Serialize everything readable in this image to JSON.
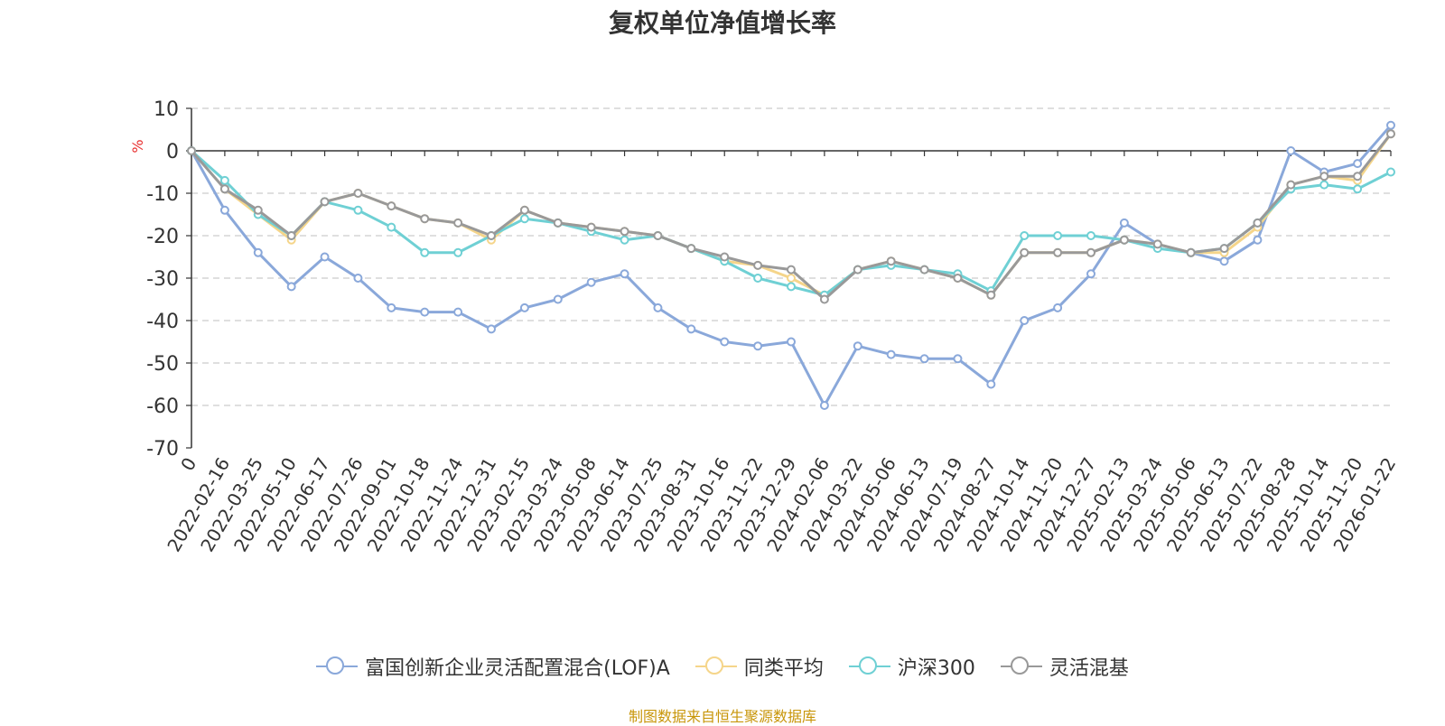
{
  "chart_data": {
    "type": "line",
    "title": "复权单位净值增长率",
    "ylabel": "%",
    "ylim": [
      -70,
      10
    ],
    "yticks": [
      10,
      0,
      -10,
      -20,
      -30,
      -40,
      -50,
      -60,
      -70
    ],
    "grid": true,
    "legend_position": "bottom-center",
    "categories": [
      "0",
      "2022-02-16",
      "2022-03-25",
      "2022-05-10",
      "2022-06-17",
      "2022-07-26",
      "2022-09-01",
      "2022-10-18",
      "2022-11-24",
      "2022-12-31",
      "2023-02-15",
      "2023-03-24",
      "2023-05-08",
      "2023-06-14",
      "2023-07-25",
      "2023-08-31",
      "2023-10-16",
      "2023-11-22",
      "2023-12-29",
      "2024-02-06",
      "2024-03-22",
      "2024-05-06",
      "2024-06-13",
      "2024-07-19",
      "2024-08-27",
      "2024-10-14",
      "2024-11-20",
      "2024-12-27",
      "2025-02-13",
      "2025-03-24",
      "2025-05-06",
      "2025-06-13",
      "2025-07-22",
      "2025-08-28",
      "2025-10-14",
      "2025-11-20",
      "2026-01-22"
    ],
    "series": [
      {
        "name": "富国创新企业灵活配置混合(LOF)A",
        "color": "#8aa8da",
        "values": [
          0,
          -14,
          -24,
          -32,
          -25,
          -30,
          -37,
          -38,
          -38,
          -42,
          -37,
          -35,
          -31,
          -29,
          -37,
          -42,
          -45,
          -46,
          -45,
          -60,
          -46,
          -48,
          -49,
          -49,
          -55,
          -40,
          -37,
          -29,
          -17,
          -22,
          -24,
          -26,
          -21,
          0,
          -5,
          -3,
          6
        ]
      },
      {
        "name": "同类平均",
        "color": "#f5d58a",
        "values": [
          0,
          -9,
          -15,
          -21,
          -12,
          -10,
          -13,
          -16,
          -17,
          -21,
          -14,
          -17,
          -18,
          -19,
          -20,
          -23,
          -26,
          -27,
          -30,
          -34,
          -28,
          -26,
          -28,
          -30,
          -34,
          -24,
          -24,
          -24,
          -21,
          -22,
          -24,
          -24,
          -18,
          -8,
          -6,
          -7,
          4
        ]
      },
      {
        "name": "沪深300",
        "color": "#6fd0d4",
        "values": [
          0,
          -7,
          -15,
          -20,
          -12,
          -14,
          -18,
          -24,
          -24,
          -20,
          -16,
          -17,
          -19,
          -21,
          -20,
          -23,
          -26,
          -30,
          -32,
          -34,
          -28,
          -27,
          -28,
          -29,
          -33,
          -20,
          -20,
          -20,
          -21,
          -23,
          -24,
          -23,
          -17,
          -9,
          -8,
          -9,
          -5
        ]
      },
      {
        "name": "灵活混基",
        "color": "#999999",
        "values": [
          0,
          -9,
          -14,
          -20,
          -12,
          -10,
          -13,
          -16,
          -17,
          -20,
          -14,
          -17,
          -18,
          -19,
          -20,
          -23,
          -25,
          -27,
          -28,
          -35,
          -28,
          -26,
          -28,
          -30,
          -34,
          -24,
          -24,
          -24,
          -21,
          -22,
          -24,
          -23,
          -17,
          -8,
          -6,
          -6,
          4
        ]
      }
    ]
  },
  "source_note": "制图数据来自恒生聚源数据库"
}
